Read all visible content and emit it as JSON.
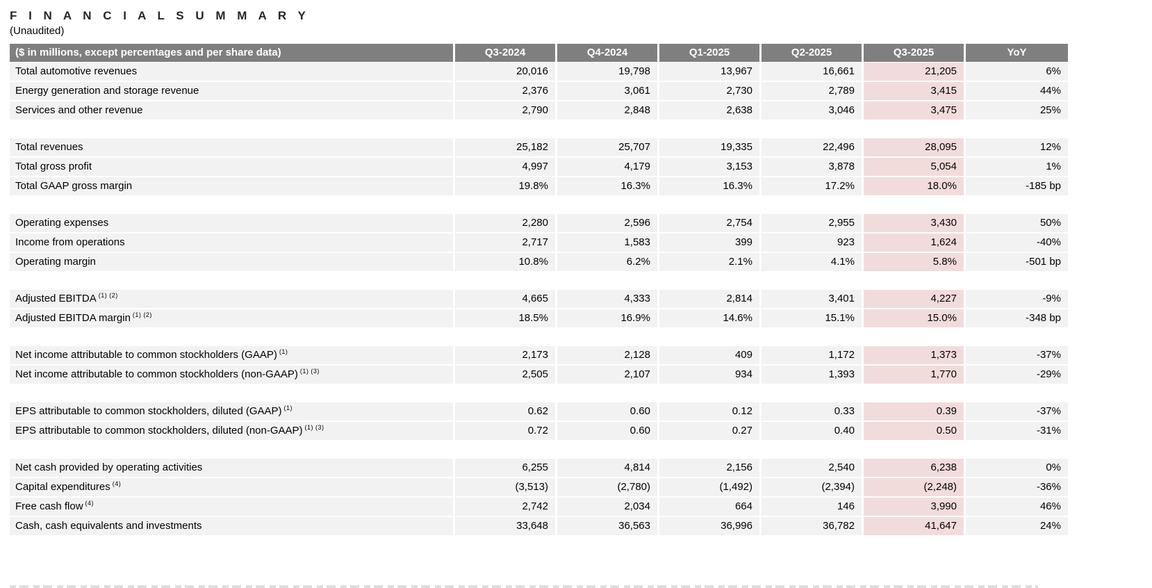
{
  "page": {
    "title": "F I N A N C I A L   S U M M A R Y",
    "subtitle": "(Unaudited)"
  },
  "colors": {
    "header_bg": "#7f7f7f",
    "header_text": "#ffffff",
    "row_bg": "#f2f2f2",
    "highlight_bg": "#f2dcdb",
    "text": "#000000"
  },
  "table": {
    "header_label": "($ in millions, except percentages and per share data)",
    "columns": [
      "Q3-2024",
      "Q4-2024",
      "Q1-2025",
      "Q2-2025",
      "Q3-2025",
      "YoY"
    ],
    "highlight_column": "Q3-2025",
    "highlight_column_index": 4,
    "sections": [
      {
        "rows": [
          {
            "label": "Total automotive revenues",
            "sup": "",
            "values": [
              "20,016",
              "19,798",
              "13,967",
              "16,661",
              "21,205",
              "6%"
            ]
          },
          {
            "label": "Energy generation and storage revenue",
            "sup": "",
            "values": [
              "2,376",
              "3,061",
              "2,730",
              "2,789",
              "3,415",
              "44%"
            ]
          },
          {
            "label": "Services and other revenue",
            "sup": "",
            "values": [
              "2,790",
              "2,848",
              "2,638",
              "3,046",
              "3,475",
              "25%"
            ]
          }
        ]
      },
      {
        "rows": [
          {
            "label": "Total revenues",
            "sup": "",
            "values": [
              "25,182",
              "25,707",
              "19,335",
              "22,496",
              "28,095",
              "12%"
            ]
          },
          {
            "label": "Total gross profit",
            "sup": "",
            "values": [
              "4,997",
              "4,179",
              "3,153",
              "3,878",
              "5,054",
              "1%"
            ]
          },
          {
            "label": "Total GAAP gross margin",
            "sup": "",
            "values": [
              "19.8%",
              "16.3%",
              "16.3%",
              "17.2%",
              "18.0%",
              "-185 bp"
            ]
          }
        ]
      },
      {
        "rows": [
          {
            "label": "Operating expenses",
            "sup": "",
            "values": [
              "2,280",
              "2,596",
              "2,754",
              "2,955",
              "3,430",
              "50%"
            ]
          },
          {
            "label": "Income from operations",
            "sup": "",
            "values": [
              "2,717",
              "1,583",
              "399",
              "923",
              "1,624",
              "-40%"
            ]
          },
          {
            "label": "Operating margin",
            "sup": "",
            "values": [
              "10.8%",
              "6.2%",
              "2.1%",
              "4.1%",
              "5.8%",
              "-501 bp"
            ]
          }
        ]
      },
      {
        "rows": [
          {
            "label": "Adjusted EBITDA",
            "sup": "(1) (2)",
            "values": [
              "4,665",
              "4,333",
              "2,814",
              "3,401",
              "4,227",
              "-9%"
            ]
          },
          {
            "label": "Adjusted EBITDA margin",
            "sup": "(1) (2)",
            "values": [
              "18.5%",
              "16.9%",
              "14.6%",
              "15.1%",
              "15.0%",
              "-348 bp"
            ]
          }
        ]
      },
      {
        "rows": [
          {
            "label": "Net income attributable to common stockholders (GAAP)",
            "sup": "(1)",
            "values": [
              "2,173",
              "2,128",
              "409",
              "1,172",
              "1,373",
              "-37%"
            ]
          },
          {
            "label": "Net income attributable to common stockholders (non-GAAP)",
            "sup": "(1) (3)",
            "values": [
              "2,505",
              "2,107",
              "934",
              "1,393",
              "1,770",
              "-29%"
            ]
          }
        ]
      },
      {
        "rows": [
          {
            "label": "EPS attributable to common stockholders, diluted (GAAP)",
            "sup": "(1)",
            "values": [
              "0.62",
              "0.60",
              "0.12",
              "0.33",
              "0.39",
              "-37%"
            ]
          },
          {
            "label": "EPS attributable to common stockholders, diluted (non-GAAP)",
            "sup": "(1) (3)",
            "values": [
              "0.72",
              "0.60",
              "0.27",
              "0.40",
              "0.50",
              "-31%"
            ]
          }
        ]
      },
      {
        "rows": [
          {
            "label": "Net cash provided by operating activities",
            "sup": "",
            "values": [
              "6,255",
              "4,814",
              "2,156",
              "2,540",
              "6,238",
              "0%"
            ]
          },
          {
            "label": "Capital expenditures",
            "sup": "(4)",
            "values": [
              "(3,513)",
              "(2,780)",
              "(1,492)",
              "(2,394)",
              "(2,248)",
              "-36%"
            ]
          },
          {
            "label": "Free cash flow",
            "sup": "(4)",
            "values": [
              "2,742",
              "2,034",
              "664",
              "146",
              "3,990",
              "46%"
            ]
          },
          {
            "label": "Cash, cash equivalents and investments",
            "sup": "",
            "values": [
              "33,648",
              "36,563",
              "36,996",
              "36,782",
              "41,647",
              "24%"
            ]
          }
        ]
      }
    ]
  }
}
